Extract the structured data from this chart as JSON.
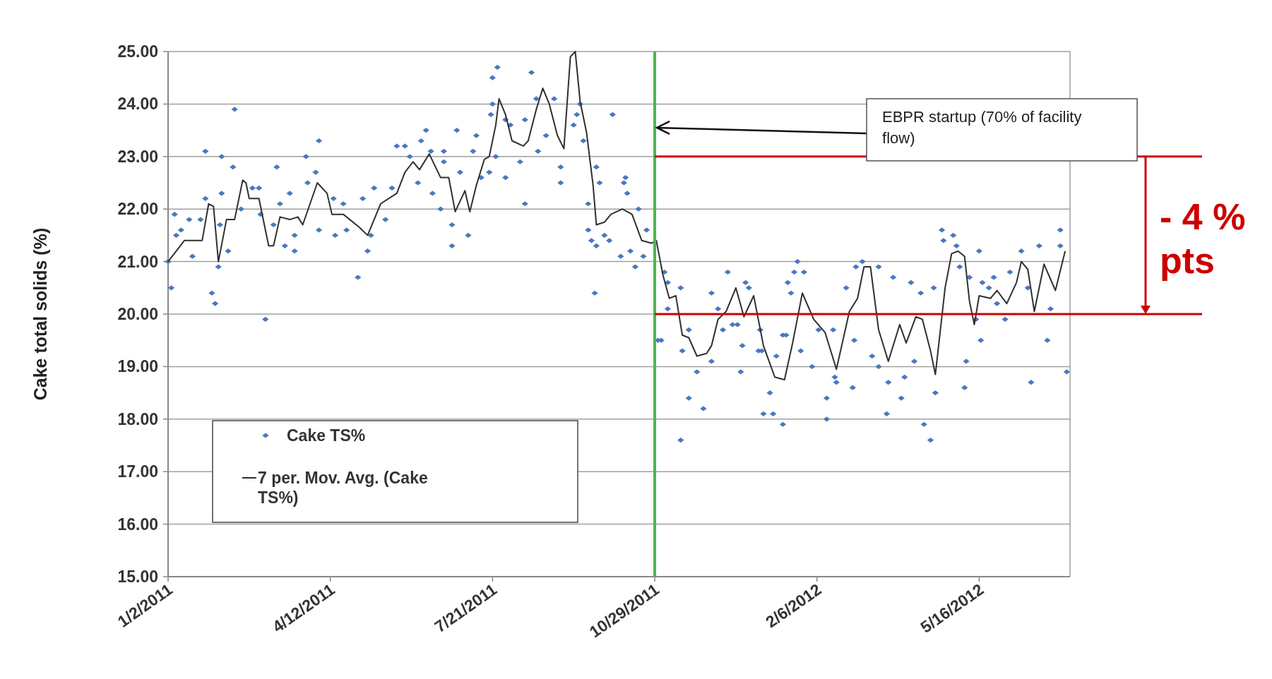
{
  "chart_data": {
    "type": "scatter",
    "ylabel": "Cake total solids (%)",
    "xlim": [
      "2011-01-02",
      "2012-07-11"
    ],
    "xticks": [
      {
        "value": "2011-01-02",
        "label": "1/2/2011"
      },
      {
        "value": "2011-04-12",
        "label": "4/12/2011"
      },
      {
        "value": "2011-07-21",
        "label": "7/21/2011"
      },
      {
        "value": "2011-10-29",
        "label": "10/29/2011"
      },
      {
        "value": "2012-02-06",
        "label": "2/6/2012"
      },
      {
        "value": "2012-05-16",
        "label": "5/16/2012"
      }
    ],
    "ylim": [
      15,
      25
    ],
    "yticks": [
      {
        "value": 15,
        "label": "15.00"
      },
      {
        "value": 16,
        "label": "16.00"
      },
      {
        "value": 17,
        "label": "17.00"
      },
      {
        "value": 18,
        "label": "18.00"
      },
      {
        "value": 19,
        "label": "19.00"
      },
      {
        "value": 20,
        "label": "20.00"
      },
      {
        "value": 21,
        "label": "21.00"
      },
      {
        "value": 22,
        "label": "22.00"
      },
      {
        "value": 23,
        "label": "23.00"
      },
      {
        "value": 24,
        "label": "24.00"
      },
      {
        "value": 25,
        "label": "25.00"
      }
    ],
    "grid": "y",
    "legend": "bottom left",
    "series": [
      {
        "name": "Cake TS%",
        "type": "scatter",
        "marker": "diamond",
        "color": "#4a78c0",
        "x": [
          "2011-01-02",
          "2011-01-04",
          "2011-01-06",
          "2011-01-07",
          "2011-01-10",
          "2011-01-15",
          "2011-01-17",
          "2011-01-22",
          "2011-01-25",
          "2011-01-25",
          "2011-01-29",
          "2011-01-31",
          "2011-02-02",
          "2011-02-03",
          "2011-02-04",
          "2011-02-04",
          "2011-02-08",
          "2011-02-11",
          "2011-02-12",
          "2011-02-16",
          "2011-02-23",
          "2011-02-27",
          "2011-02-28",
          "2011-03-03",
          "2011-03-08",
          "2011-03-10",
          "2011-03-12",
          "2011-03-15",
          "2011-03-18",
          "2011-03-21",
          "2011-03-21",
          "2011-03-28",
          "2011-03-29",
          "2011-04-03",
          "2011-04-05",
          "2011-04-05",
          "2011-04-14",
          "2011-04-15",
          "2011-04-20",
          "2011-04-22",
          "2011-04-29",
          "2011-05-02",
          "2011-05-05",
          "2011-05-07",
          "2011-05-09",
          "2011-05-16",
          "2011-05-20",
          "2011-05-23",
          "2011-05-28",
          "2011-05-31",
          "2011-06-05",
          "2011-06-07",
          "2011-06-10",
          "2011-06-13",
          "2011-06-14",
          "2011-06-19",
          "2011-06-21",
          "2011-06-21",
          "2011-06-26",
          "2011-06-26",
          "2011-06-29",
          "2011-07-01",
          "2011-07-06",
          "2011-07-09",
          "2011-07-11",
          "2011-07-14",
          "2011-07-19",
          "2011-07-21",
          "2011-07-21",
          "2011-07-20",
          "2011-07-23",
          "2011-07-24",
          "2011-07-29",
          "2011-07-29",
          "2011-08-01",
          "2011-08-07",
          "2011-08-10",
          "2011-08-10",
          "2011-08-14",
          "2011-08-17",
          "2011-08-18",
          "2011-08-23",
          "2011-08-28",
          "2011-09-01",
          "2011-09-01",
          "2011-09-09",
          "2011-09-11",
          "2011-09-13",
          "2011-09-15",
          "2011-09-18",
          "2011-09-18",
          "2011-09-20",
          "2011-09-22",
          "2011-09-23",
          "2011-09-23",
          "2011-09-25",
          "2011-09-28",
          "2011-10-01",
          "2011-10-03",
          "2011-10-08",
          "2011-10-10",
          "2011-10-11",
          "2011-10-12",
          "2011-10-14",
          "2011-10-17",
          "2011-10-19",
          "2011-10-22",
          "2011-10-24",
          "2011-10-31",
          "2011-11-02",
          "2011-11-04",
          "2011-11-06",
          "2011-11-06",
          "2011-11-14",
          "2011-11-14",
          "2011-11-15",
          "2011-11-19",
          "2011-11-19",
          "2011-11-24",
          "2011-11-28",
          "2011-12-03",
          "2011-12-03",
          "2011-12-07",
          "2011-12-10",
          "2011-12-13",
          "2011-12-16",
          "2011-12-19",
          "2011-12-21",
          "2011-12-22",
          "2011-12-24",
          "2011-12-26",
          "2012-01-01",
          "2012-01-02",
          "2012-01-03",
          "2012-01-04",
          "2012-01-08",
          "2012-01-10",
          "2012-01-12",
          "2012-01-16",
          "2012-01-16",
          "2012-01-18",
          "2012-01-19",
          "2012-01-21",
          "2012-01-23",
          "2012-01-25",
          "2012-01-27",
          "2012-01-29",
          "2012-02-03",
          "2012-02-07",
          "2012-02-12",
          "2012-02-12",
          "2012-02-16",
          "2012-02-17",
          "2012-02-18",
          "2012-02-24",
          "2012-02-28",
          "2012-02-29",
          "2012-03-01",
          "2012-03-05",
          "2012-03-11",
          "2012-03-15",
          "2012-03-15",
          "2012-03-20",
          "2012-03-21",
          "2012-03-24",
          "2012-03-29",
          "2012-03-31",
          "2012-04-04",
          "2012-04-06",
          "2012-04-10",
          "2012-04-12",
          "2012-04-16",
          "2012-04-18",
          "2012-04-19",
          "2012-04-23",
          "2012-04-24",
          "2012-04-30",
          "2012-05-02",
          "2012-05-04",
          "2012-05-07",
          "2012-05-08",
          "2012-05-10",
          "2012-05-14",
          "2012-05-16",
          "2012-05-17",
          "2012-05-18",
          "2012-05-22",
          "2012-05-25",
          "2012-05-27",
          "2012-06-01",
          "2012-06-04",
          "2012-06-11",
          "2012-06-15",
          "2012-06-17",
          "2012-06-22",
          "2012-06-27",
          "2012-06-29",
          "2012-07-05",
          "2012-07-05",
          "2012-07-09"
        ],
        "values": [
          21.0,
          20.5,
          21.9,
          21.5,
          21.6,
          21.8,
          21.1,
          21.8,
          22.2,
          23.1,
          20.4,
          20.2,
          20.9,
          21.7,
          23.0,
          22.3,
          21.2,
          22.8,
          23.9,
          22.0,
          22.4,
          22.4,
          21.9,
          19.9,
          21.7,
          22.8,
          22.1,
          21.3,
          22.3,
          21.2,
          21.5,
          23.0,
          22.5,
          22.7,
          23.3,
          21.6,
          22.2,
          21.5,
          22.1,
          21.6,
          20.7,
          22.2,
          21.2,
          21.5,
          22.4,
          21.8,
          22.4,
          23.2,
          23.2,
          23.0,
          22.5,
          23.3,
          23.5,
          23.1,
          22.3,
          22.0,
          23.1,
          22.9,
          21.7,
          21.3,
          23.5,
          22.7,
          21.5,
          23.1,
          23.4,
          22.6,
          22.7,
          24.5,
          24.0,
          23.8,
          23.0,
          24.7,
          23.7,
          22.6,
          23.6,
          22.9,
          23.7,
          22.1,
          24.6,
          24.1,
          23.1,
          23.4,
          24.1,
          22.8,
          22.5,
          23.6,
          23.8,
          24.0,
          23.3,
          22.1,
          21.6,
          21.4,
          20.4,
          21.3,
          22.8,
          22.5,
          21.5,
          21.4,
          23.8,
          21.1,
          22.5,
          22.6,
          22.3,
          21.2,
          20.9,
          22.0,
          21.1,
          21.6,
          19.5,
          19.5,
          20.8,
          20.6,
          20.1,
          20.5,
          17.6,
          19.3,
          18.4,
          19.7,
          18.9,
          18.2,
          19.1,
          20.4,
          20.1,
          19.7,
          20.8,
          19.8,
          19.8,
          18.9,
          19.4,
          20.6,
          20.5,
          19.3,
          19.7,
          19.3,
          18.1,
          18.5,
          18.1,
          19.2,
          17.9,
          19.6,
          19.6,
          20.6,
          20.4,
          20.8,
          21.0,
          19.3,
          20.8,
          19.0,
          19.7,
          18.4,
          18.0,
          19.7,
          18.8,
          18.7,
          20.5,
          18.6,
          19.5,
          20.9,
          21.0,
          19.2,
          19.0,
          20.9,
          18.1,
          18.7,
          20.7,
          18.4,
          18.8,
          20.6,
          19.1,
          20.4,
          17.9,
          17.6,
          20.5,
          18.5,
          21.6,
          21.4,
          21.5,
          21.3,
          20.9,
          18.6,
          19.1,
          20.7,
          19.9,
          21.2,
          19.5,
          20.6,
          20.5,
          20.7,
          20.2,
          19.9,
          20.8,
          21.2,
          20.5,
          18.7,
          21.3,
          19.5,
          20.1,
          21.6,
          21.3,
          18.9
        ]
      },
      {
        "name": "7 per. Mov. Avg. (Cake TS%)",
        "type": "line",
        "marker": "none",
        "line_style": "solid",
        "color": "#303030",
        "x": [
          "2011-01-02",
          "2011-01-12",
          "2011-01-17",
          "2011-01-23",
          "2011-01-27",
          "2011-01-30",
          "2011-02-02",
          "2011-02-07",
          "2011-02-12",
          "2011-02-17",
          "2011-02-19",
          "2011-02-21",
          "2011-02-27",
          "2011-03-05",
          "2011-03-08",
          "2011-03-12",
          "2011-03-18",
          "2011-03-23",
          "2011-03-26",
          "2011-04-04",
          "2011-04-10",
          "2011-04-13",
          "2011-04-20",
          "2011-04-30",
          "2011-05-05",
          "2011-05-13",
          "2011-05-23",
          "2011-05-28",
          "2011-06-02",
          "2011-06-06",
          "2011-06-12",
          "2011-06-19",
          "2011-06-24",
          "2011-06-28",
          "2011-07-04",
          "2011-07-07",
          "2011-07-11",
          "2011-07-16",
          "2011-07-19",
          "2011-07-23",
          "2011-07-25",
          "2011-07-29",
          "2011-08-02",
          "2011-08-09",
          "2011-08-12",
          "2011-08-17",
          "2011-08-21",
          "2011-08-25",
          "2011-08-30",
          "2011-09-03",
          "2011-09-07",
          "2011-09-10",
          "2011-09-13",
          "2011-09-17",
          "2011-09-21",
          "2011-09-23",
          "2011-09-28",
          "2011-10-02",
          "2011-10-09",
          "2011-10-15",
          "2011-10-21",
          "2011-10-27",
          "2011-10-30",
          "2011-11-03",
          "2011-11-07",
          "2011-11-11",
          "2011-11-15",
          "2011-11-19",
          "2011-11-24",
          "2011-11-30",
          "2011-12-03",
          "2011-12-07",
          "2011-12-12",
          "2011-12-18",
          "2011-12-23",
          "2011-12-29",
          "2012-01-04",
          "2012-01-11",
          "2012-01-17",
          "2012-01-22",
          "2012-01-28",
          "2012-02-04",
          "2012-02-11",
          "2012-02-18",
          "2012-02-26",
          "2012-03-02",
          "2012-03-06",
          "2012-03-10",
          "2012-03-15",
          "2012-03-21",
          "2012-03-28",
          "2012-04-01",
          "2012-04-07",
          "2012-04-11",
          "2012-04-16",
          "2012-04-19",
          "2012-04-25",
          "2012-04-29",
          "2012-05-03",
          "2012-05-07",
          "2012-05-10",
          "2012-05-13",
          "2012-05-16",
          "2012-05-23",
          "2012-05-27",
          "2012-06-02",
          "2012-06-08",
          "2012-06-11",
          "2012-06-15",
          "2012-06-19",
          "2012-06-25",
          "2012-07-02",
          "2012-07-08"
        ],
        "values": [
          21.0,
          21.4,
          21.4,
          21.4,
          22.1,
          22.05,
          21.0,
          21.8,
          21.8,
          22.55,
          22.5,
          22.2,
          22.2,
          21.3,
          21.3,
          21.85,
          21.8,
          21.85,
          21.7,
          22.5,
          22.3,
          21.9,
          21.9,
          21.65,
          21.5,
          22.1,
          22.3,
          22.7,
          22.9,
          22.75,
          23.05,
          22.6,
          22.6,
          21.95,
          22.35,
          21.95,
          22.45,
          22.95,
          23.0,
          23.6,
          24.1,
          23.8,
          23.3,
          23.2,
          23.3,
          23.9,
          24.3,
          24.0,
          23.4,
          23.15,
          24.9,
          25.0,
          24.05,
          23.45,
          22.45,
          21.7,
          21.75,
          21.9,
          22.0,
          21.9,
          21.4,
          21.35,
          21.4,
          20.75,
          20.3,
          20.35,
          19.6,
          19.55,
          19.2,
          19.25,
          19.4,
          19.9,
          20.05,
          20.5,
          19.95,
          20.35,
          19.4,
          18.8,
          18.75,
          19.45,
          20.4,
          19.9,
          19.65,
          18.95,
          20.05,
          20.3,
          20.9,
          20.9,
          19.7,
          19.1,
          19.8,
          19.45,
          19.95,
          19.9,
          19.3,
          18.85,
          20.5,
          21.15,
          21.2,
          21.1,
          20.25,
          19.8,
          20.35,
          20.3,
          20.45,
          20.2,
          20.6,
          21.0,
          20.85,
          20.05,
          20.95,
          20.45,
          21.2
        ]
      }
    ],
    "ref_lines": [
      {
        "axis": "x",
        "value": "2011-10-29",
        "color": "#4cb74c"
      },
      {
        "axis": "y",
        "value": 23,
        "color": "#cc0000"
      },
      {
        "axis": "y",
        "value": 20,
        "color": "#cc0000"
      }
    ],
    "annotations": [
      {
        "text": "EBPR startup (70% of facility flow)",
        "x": "2011-10-29",
        "y": 23.55
      },
      "- 4 % pts"
    ]
  }
}
